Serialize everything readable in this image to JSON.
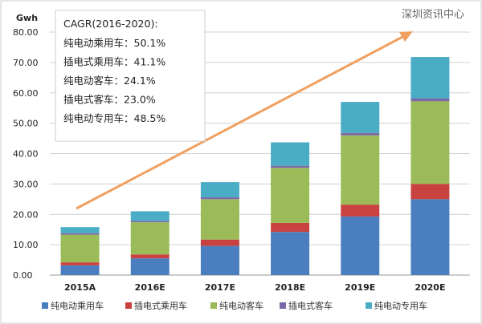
{
  "chart_data": {
    "type": "bar",
    "stacked": true,
    "ylabel": "Gwh",
    "ylim": [
      0,
      80
    ],
    "yticks": [
      "0.00",
      "10.00",
      "20.00",
      "30.00",
      "40.00",
      "50.00",
      "60.00",
      "70.00",
      "80.00"
    ],
    "grid": true,
    "legend_placement": "bottom",
    "categories": [
      "2015A",
      "2016E",
      "2017E",
      "2018E",
      "2019E",
      "2020E"
    ],
    "series": [
      {
        "name": "纯电动乘用车",
        "color": "#4a7ebf",
        "values": [
          3.2,
          5.5,
          9.6,
          14.2,
          19.3,
          25.0
        ]
      },
      {
        "name": "插电式乘用车",
        "color": "#c9423f",
        "values": [
          1.0,
          1.3,
          2.1,
          3.0,
          3.9,
          5.0
        ]
      },
      {
        "name": "纯电动客车",
        "color": "#9bbb59",
        "values": [
          9.1,
          10.6,
          13.3,
          18.1,
          22.8,
          27.2
        ]
      },
      {
        "name": "插电式客车",
        "color": "#7b68a6",
        "values": [
          0.5,
          0.4,
          0.6,
          0.7,
          0.8,
          1.0
        ]
      },
      {
        "name": "纯电动专用车",
        "color": "#4bacc6",
        "values": [
          2.0,
          3.2,
          5.0,
          7.7,
          10.2,
          13.6
        ]
      }
    ],
    "annotation": {
      "title": "CAGR(2016-2020):",
      "lines": [
        "纯电动乘用车：50.1%",
        "插电式乘用车：41.1%",
        "纯电动客车：24.1%",
        "插电式客车：23.0%",
        "纯电动专用车：48.5%"
      ]
    },
    "trend_arrow_color": "#f0a060"
  },
  "watermark": "深圳资讯中心"
}
